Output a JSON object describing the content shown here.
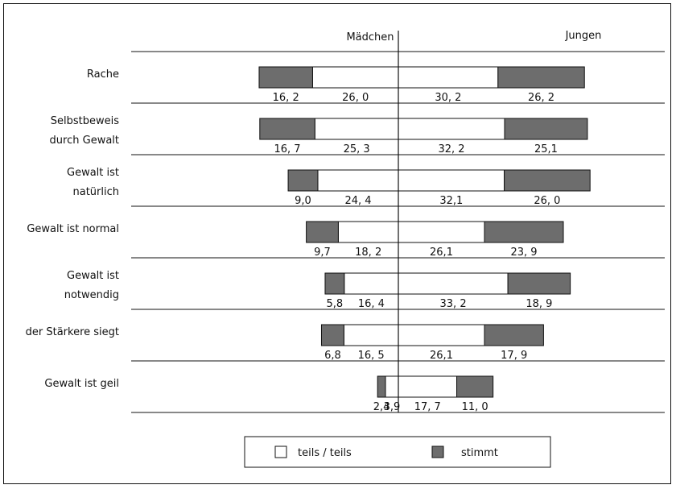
{
  "chart_data": {
    "type": "bar",
    "title": "",
    "group_labels": [
      "Mädchen",
      "Jungen"
    ],
    "categories": [
      [
        "Rache"
      ],
      [
        "Selbstbeweis",
        "durch Gewalt"
      ],
      [
        "Gewalt ist",
        "natürlich"
      ],
      [
        "Gewalt ist normal"
      ],
      [
        "Gewalt ist",
        "notwendig"
      ],
      [
        "der Stärkere siegt"
      ],
      [
        "Gewalt ist geil"
      ]
    ],
    "series": [
      {
        "name": "stimmt",
        "group": "Mädchen",
        "color": "#6d6d6d",
        "values": [
          16.2,
          16.7,
          9.0,
          9.7,
          5.8,
          6.8,
          2.4
        ],
        "labels": [
          "16, 2",
          "16, 7",
          "9,0",
          "9,7",
          "5,8",
          "6,8",
          "2,4"
        ]
      },
      {
        "name": "teils / teils",
        "group": "Mädchen",
        "color": "#ffffff",
        "values": [
          26.0,
          25.3,
          24.4,
          18.2,
          16.4,
          16.5,
          3.9
        ],
        "labels": [
          "26, 0",
          "25, 3",
          "24, 4",
          "18, 2",
          "16, 4",
          "16, 5",
          "3,9"
        ]
      },
      {
        "name": "teils / teils",
        "group": "Jungen",
        "color": "#ffffff",
        "values": [
          30.2,
          32.2,
          32.1,
          26.1,
          33.2,
          26.1,
          17.7
        ],
        "labels": [
          "30, 2",
          "32, 2",
          "32,1",
          "26,1",
          "33, 2",
          "26,1",
          "17, 7"
        ]
      },
      {
        "name": "stimmt",
        "group": "Jungen",
        "color": "#6d6d6d",
        "values": [
          26.2,
          25.1,
          26.0,
          23.9,
          18.9,
          17.9,
          11.0
        ],
        "labels": [
          "26, 2",
          "25,1",
          "26, 0",
          "23, 9",
          "18, 9",
          "17, 9",
          "11, 0"
        ]
      }
    ],
    "legend": [
      {
        "label": "teils / teils",
        "color": "#ffffff"
      },
      {
        "label": "stimmt",
        "color": "#6d6d6d"
      }
    ],
    "legend_position": "bottom-center"
  }
}
